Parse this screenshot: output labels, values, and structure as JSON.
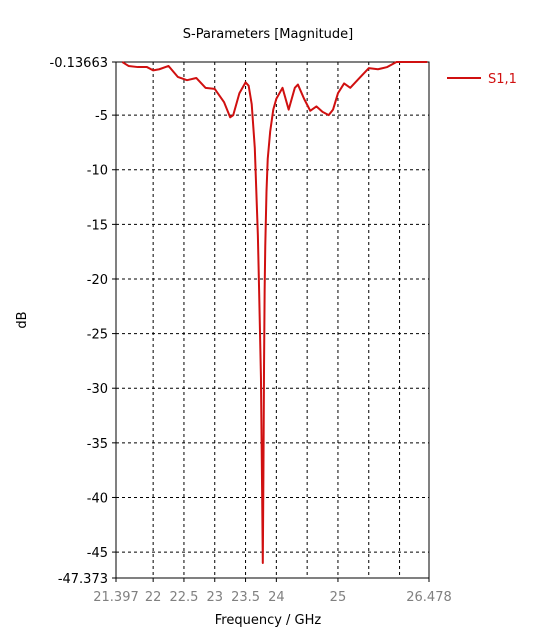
{
  "chart_data": {
    "type": "line",
    "title": "S-Parameters [Magnitude]",
    "xlabel": "Frequency / GHz",
    "ylabel": "dB",
    "xlim": [
      21.397,
      26.478
    ],
    "ylim": [
      -47.373,
      -0.13663
    ],
    "x_ticks": [
      {
        "value": 21.397,
        "label": "21.397",
        "color": "grey"
      },
      {
        "value": 22,
        "label": "22",
        "color": "grey"
      },
      {
        "value": 22.5,
        "label": "22.5",
        "color": "grey"
      },
      {
        "value": 23,
        "label": "23",
        "color": "grey"
      },
      {
        "value": 23.5,
        "label": "23.5",
        "color": "grey"
      },
      {
        "value": 24,
        "label": "24",
        "color": "grey"
      },
      {
        "value": 25,
        "label": "25",
        "color": "grey"
      },
      {
        "value": 26.478,
        "label": "26.478",
        "color": "grey"
      }
    ],
    "x_grid": [
      22,
      22.5,
      23,
      23.5,
      24,
      24.5,
      25,
      25.5,
      26
    ],
    "y_ticks": [
      {
        "value": -0.13663,
        "label": "-0.13663"
      },
      {
        "value": -5,
        "label": "-5"
      },
      {
        "value": -10,
        "label": "-10"
      },
      {
        "value": -15,
        "label": "-15"
      },
      {
        "value": -20,
        "label": "-20"
      },
      {
        "value": -25,
        "label": "-25"
      },
      {
        "value": -30,
        "label": "-30"
      },
      {
        "value": -35,
        "label": "-35"
      },
      {
        "value": -40,
        "label": "-40"
      },
      {
        "value": -45,
        "label": "-45"
      },
      {
        "value": -47.373,
        "label": "-47.373"
      }
    ],
    "grid": true,
    "legend_position": "top-right",
    "series": [
      {
        "name": "S1,1",
        "color": "#d01010",
        "x": [
          21.5,
          21.6,
          21.75,
          21.9,
          22.0,
          22.1,
          22.25,
          22.4,
          22.55,
          22.7,
          22.85,
          23.0,
          23.15,
          23.25,
          23.3,
          23.4,
          23.5,
          23.55,
          23.6,
          23.65,
          23.7,
          23.72,
          23.75,
          23.77,
          23.78,
          23.79,
          23.8,
          23.81,
          23.82,
          23.84,
          23.86,
          23.9,
          23.95,
          24.0,
          24.1,
          24.2,
          24.3,
          24.35,
          24.45,
          24.55,
          24.65,
          24.75,
          24.85,
          24.92,
          25.0,
          25.1,
          25.2,
          25.35,
          25.5,
          25.65,
          25.8,
          25.95,
          26.1,
          26.3,
          26.45
        ],
        "y": [
          -0.1,
          -0.5,
          -0.6,
          -0.6,
          -0.9,
          -0.8,
          -0.5,
          -1.5,
          -1.8,
          -1.6,
          -2.5,
          -2.6,
          -3.8,
          -5.2,
          -5.0,
          -3.0,
          -2.0,
          -2.3,
          -4.0,
          -8.0,
          -16.0,
          -21.0,
          -29.0,
          -40.0,
          -46.0,
          -38.0,
          -28.0,
          -21.0,
          -17.0,
          -12.0,
          -9.0,
          -6.5,
          -4.5,
          -3.5,
          -2.5,
          -4.5,
          -2.5,
          -2.2,
          -3.5,
          -4.6,
          -4.2,
          -4.7,
          -5.0,
          -4.5,
          -3.0,
          -2.1,
          -2.5,
          -1.6,
          -0.7,
          -0.8,
          -0.6,
          -0.1,
          0.0,
          0.0,
          -0.05
        ]
      }
    ]
  }
}
